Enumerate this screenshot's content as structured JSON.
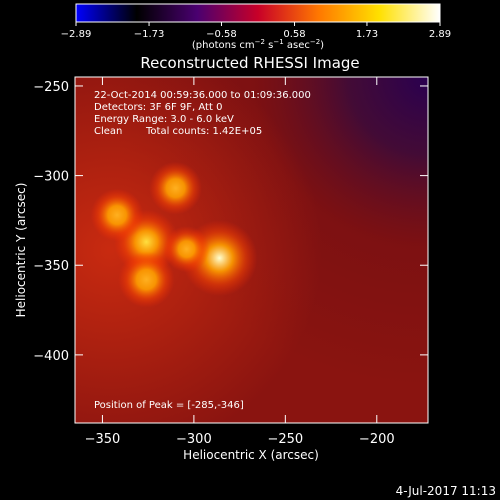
{
  "chart_data": {
    "type": "heatmap",
    "title": "Reconstructed RHESSI Image",
    "xlabel": "Heliocentric X (arcsec)",
    "ylabel": "Heliocentric Y (arcsec)",
    "xlim": [
      -365,
      -172
    ],
    "ylim": [
      -438,
      -245
    ],
    "xticks": [
      -350,
      -300,
      -250,
      -200
    ],
    "yticks": [
      -250,
      -300,
      -350,
      -400
    ],
    "xtick_labels": [
      "−350",
      "−300",
      "−250",
      "−200"
    ],
    "ytick_labels": [
      "−250",
      "−300",
      "−350",
      "−400"
    ],
    "colorbar": {
      "range": [
        -2.89,
        2.89
      ],
      "ticks": [
        -2.89,
        -1.73,
        -0.58,
        0.58,
        1.73,
        2.89
      ],
      "tick_labels": [
        "−2.89",
        "−1.73",
        "−0.58",
        "0.58",
        "1.73",
        "2.89"
      ],
      "unit_prefix": "(photons cm",
      "unit_exp1": "−2",
      "unit_mid": " s",
      "unit_exp2": "−1",
      "unit_mid2": " asec",
      "unit_exp3": "−2",
      "unit_suffix": ")",
      "colors": [
        "#0000ff",
        "#000000",
        "#4a0070",
        "#c80028",
        "#ff7800",
        "#ffe000",
        "#ffffff"
      ]
    },
    "annotations": {
      "time_range": "22-Oct-2014 00:59:36.000 to 01:09:36.000",
      "detectors": "Detectors: 3F 6F 9F, Att 0",
      "energy_range": "Energy Range: 3.0 - 6.0 keV",
      "method": "Clean",
      "total_counts": "Total counts: 1.42E+05",
      "peak_position": "Position of Peak = [-285,-346]"
    },
    "sources": [
      {
        "x": -286,
        "y": -346,
        "intensity": 2.89
      },
      {
        "x": -326,
        "y": -337,
        "intensity": 2.2
      },
      {
        "x": -326,
        "y": -358,
        "intensity": 1.7
      },
      {
        "x": -342,
        "y": -322,
        "intensity": 1.5
      },
      {
        "x": -310,
        "y": -307,
        "intensity": 1.5
      },
      {
        "x": -304,
        "y": -341,
        "intensity": 1.1
      }
    ],
    "background_level": -0.2
  },
  "footer": {
    "date": "4-Jul-2017 11:13"
  }
}
